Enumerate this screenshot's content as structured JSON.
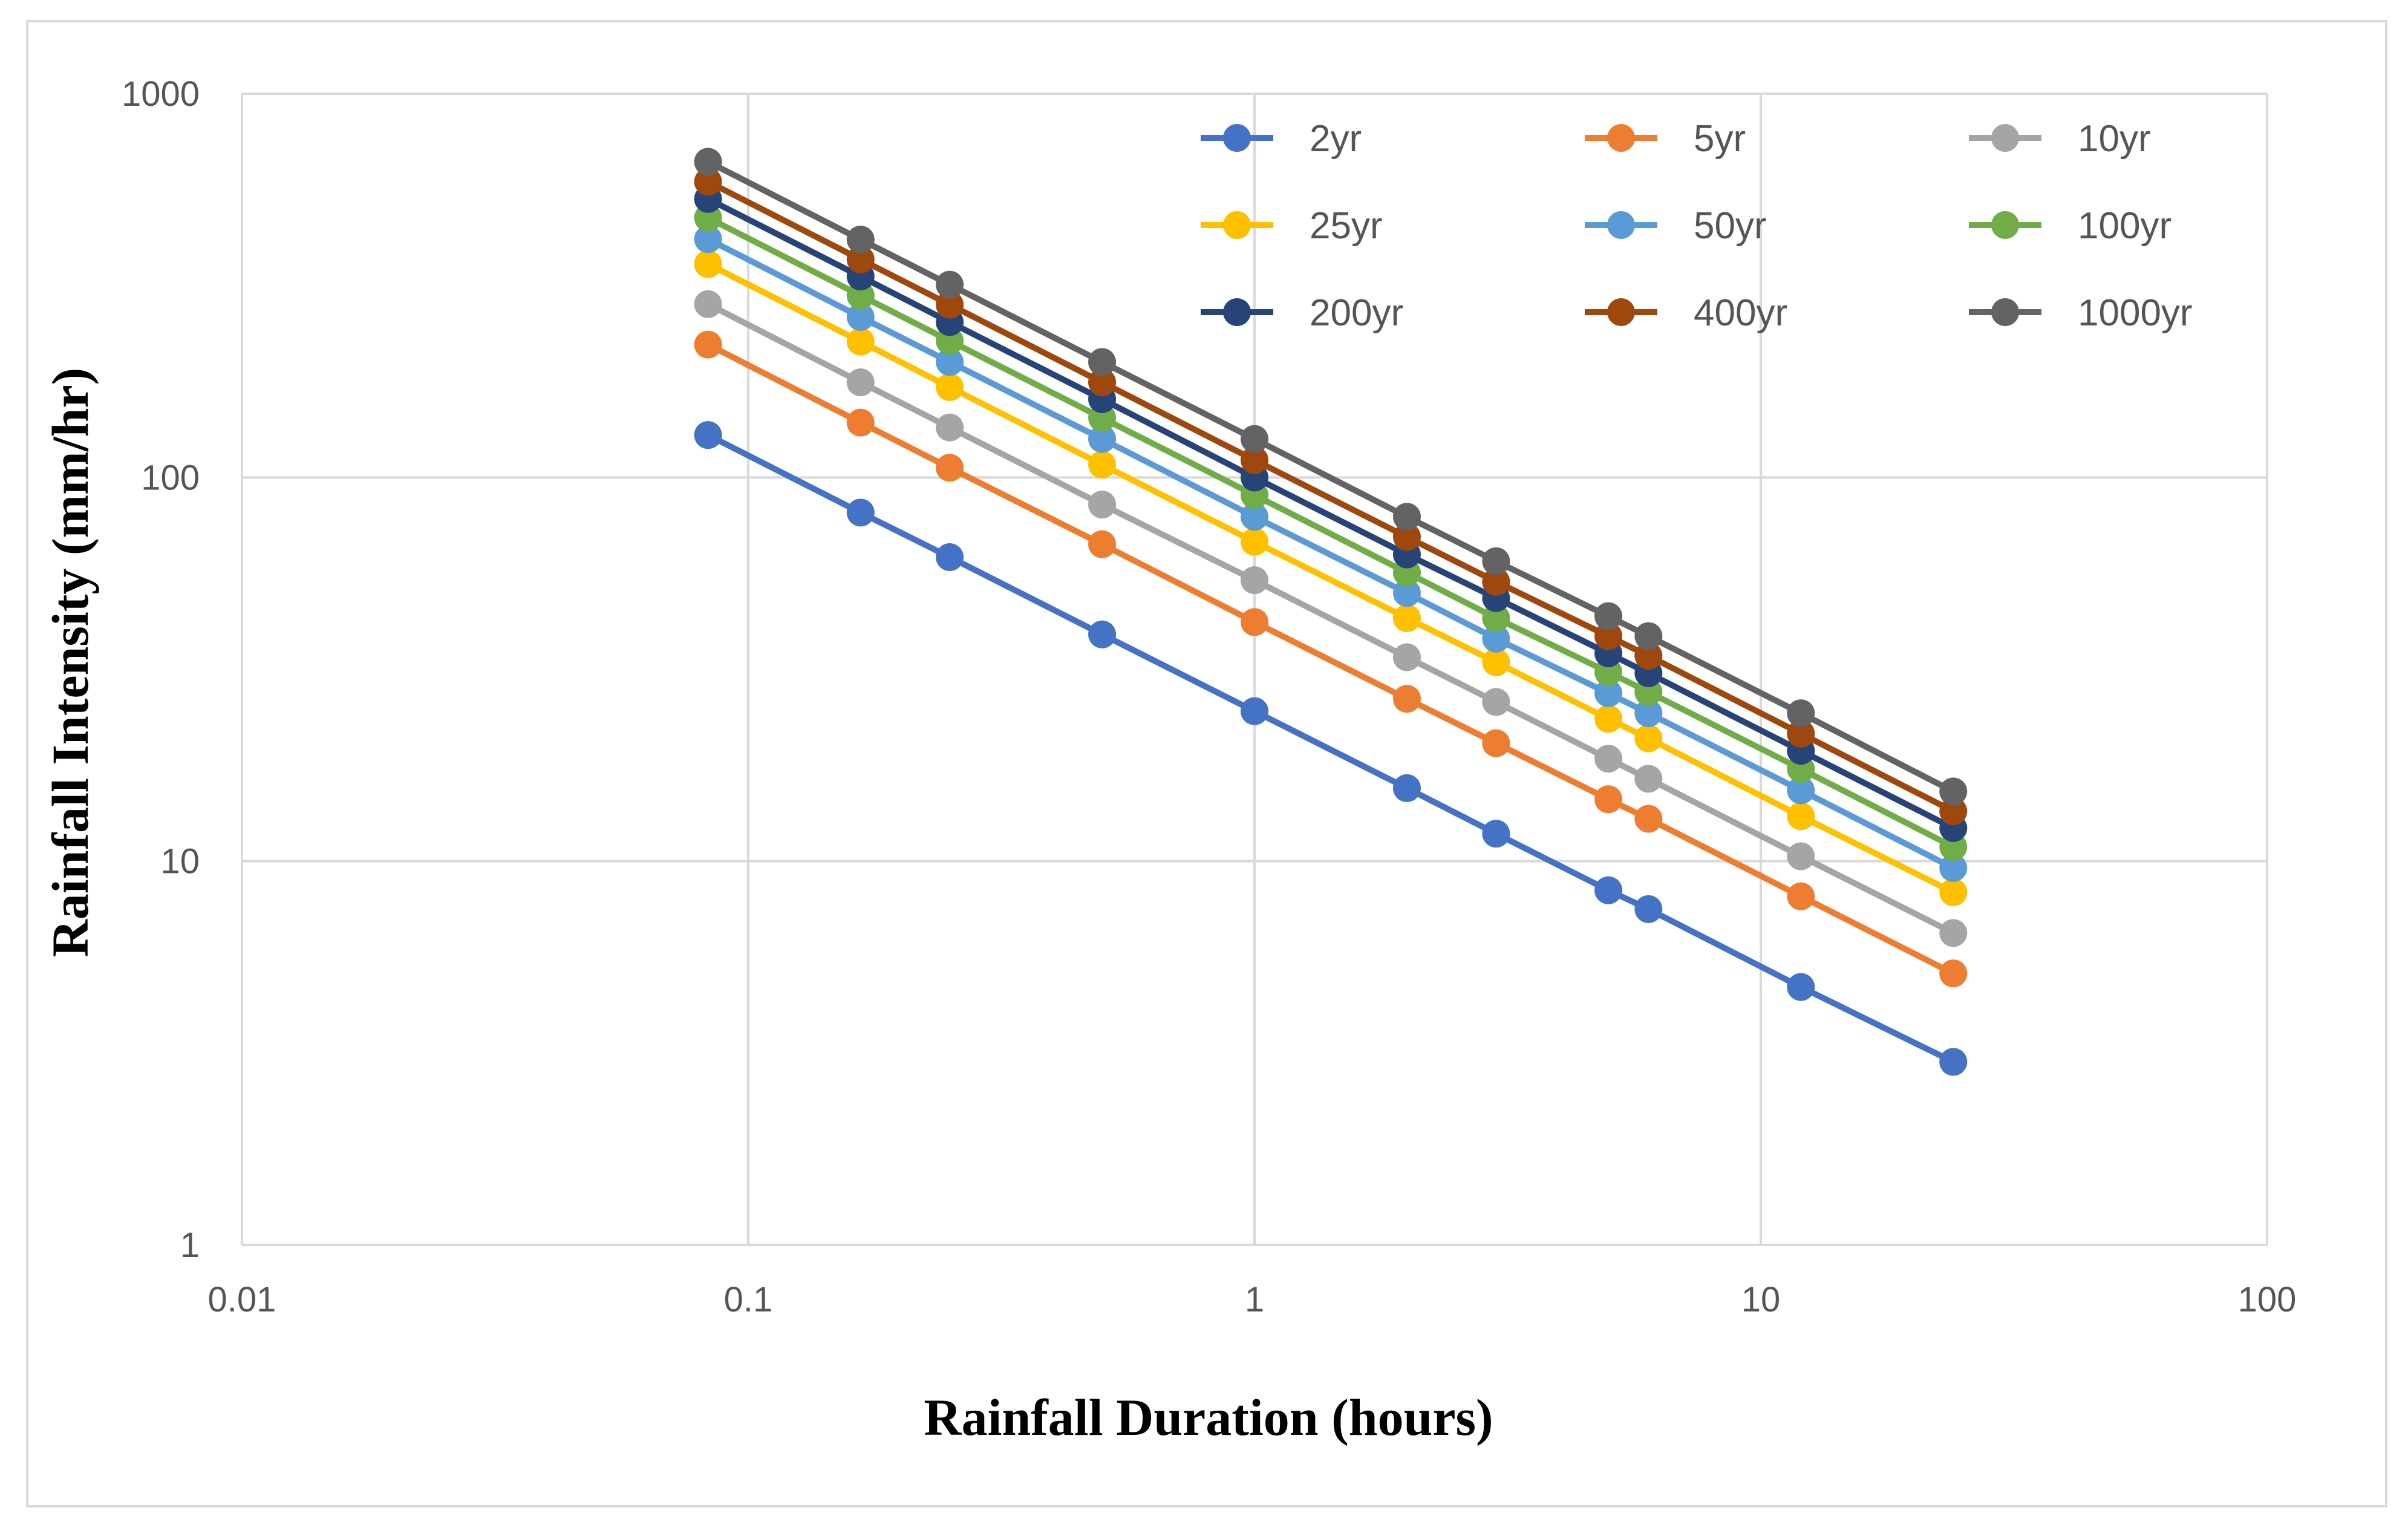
{
  "chart_data": {
    "type": "line",
    "title": "",
    "xlabel": "Rainfall Duration (hours)",
    "ylabel": "Rainfall Intensity (mm/hr)",
    "xscale": "log",
    "yscale": "log",
    "xlim": [
      0.01,
      100
    ],
    "ylim": [
      1,
      1000
    ],
    "grid": true,
    "legend_position": "top-right",
    "x_ticks": [
      "0.01",
      "0.1",
      "1",
      "10",
      "100"
    ],
    "y_ticks": [
      "1",
      "10",
      "100",
      "1000"
    ],
    "x": [
      0.0833,
      0.1667,
      0.25,
      0.5,
      1,
      2,
      3,
      5,
      6,
      12,
      24
    ],
    "series": [
      {
        "name": "2yr",
        "color": "#4472C4",
        "values": [
          129,
          81,
          62,
          39,
          24.6,
          15.5,
          11.8,
          8.4,
          7.5,
          4.7,
          3.0
        ]
      },
      {
        "name": "5yr",
        "color": "#ED7D31",
        "values": [
          222,
          139,
          106,
          67,
          42,
          26.5,
          20.3,
          14.5,
          12.9,
          8.1,
          5.1
        ]
      },
      {
        "name": "10yr",
        "color": "#A5A5A5",
        "values": [
          283,
          177,
          135,
          85,
          54,
          34,
          26,
          18.5,
          16.4,
          10.3,
          6.5
        ]
      },
      {
        "name": "25yr",
        "color": "#FFC000",
        "values": [
          360,
          226,
          172,
          108,
          68,
          43,
          33,
          23.5,
          20.9,
          13.1,
          8.3
        ]
      },
      {
        "name": "50yr",
        "color": "#5B9BD5",
        "values": [
          418,
          262,
          200,
          126,
          79,
          50,
          38,
          27.4,
          24.3,
          15.3,
          9.6
        ]
      },
      {
        "name": "100yr",
        "color": "#70AD47",
        "values": [
          475,
          298,
          227,
          143,
          90,
          56.5,
          43,
          31.1,
          27.6,
          17.4,
          10.9
        ]
      },
      {
        "name": "200yr",
        "color": "#264478",
        "values": [
          532,
          334,
          254,
          160,
          100,
          63,
          48.5,
          34.8,
          30.9,
          19.4,
          12.2
        ]
      },
      {
        "name": "400yr",
        "color": "#9E480E",
        "values": [
          590,
          370,
          282,
          177,
          111,
          70,
          53.5,
          38.6,
          34.3,
          21.5,
          13.5
        ]
      },
      {
        "name": "1000yr",
        "color": "#636363",
        "values": [
          665,
          417,
          318,
          200,
          126,
          79,
          60.5,
          43.5,
          38.6,
          24.3,
          15.2
        ]
      }
    ]
  }
}
